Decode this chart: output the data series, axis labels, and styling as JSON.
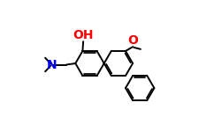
{
  "bg_color": "#ffffff",
  "bond_color": "#000000",
  "oh_color": "#ff0000",
  "o_color": "#ff0000",
  "n_color": "#0000ff",
  "lw": 1.4,
  "fs": 8.5,
  "figsize": [
    2.42,
    1.5
  ],
  "dpi": 100,
  "r": 0.108,
  "ao": 0,
  "ring_centers": {
    "C": [
      0.36,
      0.52
    ],
    "B": [
      0.52,
      0.52
    ],
    "A": [
      0.635,
      0.333
    ]
  }
}
